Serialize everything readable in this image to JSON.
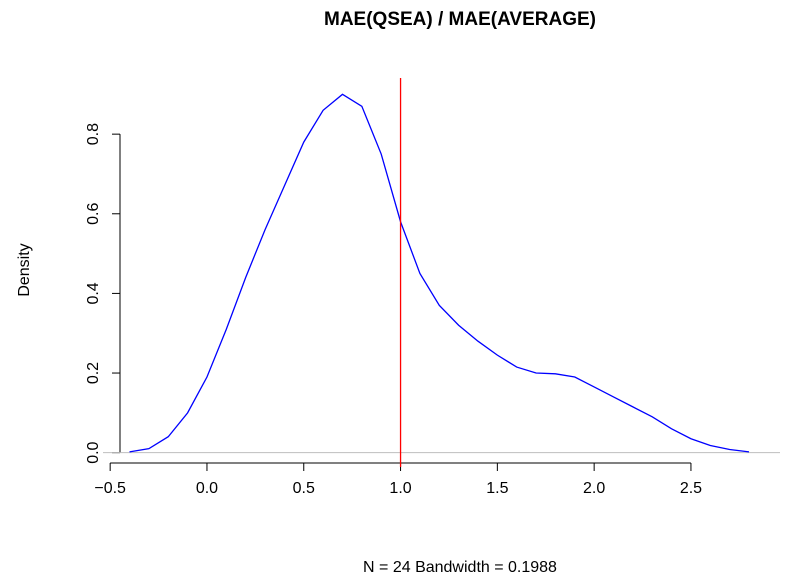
{
  "chart_data": {
    "type": "line",
    "title": "MAE(QSEA) / MAE(AVERAGE)",
    "xlabel": "N = 24   Bandwidth = 0.1988",
    "ylabel": "Density",
    "x": [
      -0.4,
      -0.3,
      -0.2,
      -0.1,
      0.0,
      0.1,
      0.2,
      0.3,
      0.4,
      0.5,
      0.6,
      0.7,
      0.8,
      0.9,
      1.0,
      1.1,
      1.2,
      1.3,
      1.4,
      1.5,
      1.6,
      1.7,
      1.8,
      1.9,
      2.0,
      2.1,
      2.2,
      2.3,
      2.4,
      2.5,
      2.6,
      2.7,
      2.8
    ],
    "values": [
      0.002,
      0.01,
      0.04,
      0.1,
      0.19,
      0.31,
      0.44,
      0.56,
      0.67,
      0.78,
      0.86,
      0.9,
      0.87,
      0.75,
      0.58,
      0.45,
      0.37,
      0.32,
      0.28,
      0.245,
      0.215,
      0.2,
      0.198,
      0.19,
      0.165,
      0.14,
      0.115,
      0.09,
      0.06,
      0.035,
      0.018,
      0.008,
      0.002
    ],
    "color": "#0000ff",
    "vline": {
      "x": 1,
      "color": "#ff0000"
    },
    "hline": {
      "y": 0,
      "color": "#bebebe"
    },
    "xlim": [
      -0.537,
      2.96
    ],
    "ylim": [
      -0.036,
      0.936
    ],
    "xticks": [
      {
        "value": -0.5,
        "label": "−0.5"
      },
      {
        "value": 0,
        "label": "0.0"
      },
      0.5,
      {
        "value": 1,
        "label": "1.0"
      },
      1.5,
      {
        "value": 2,
        "label": "2.0"
      },
      2.5
    ],
    "yticks": [
      {
        "value": 0,
        "label": "0.0"
      },
      0.2,
      0.4,
      0.6,
      0.8
    ]
  }
}
